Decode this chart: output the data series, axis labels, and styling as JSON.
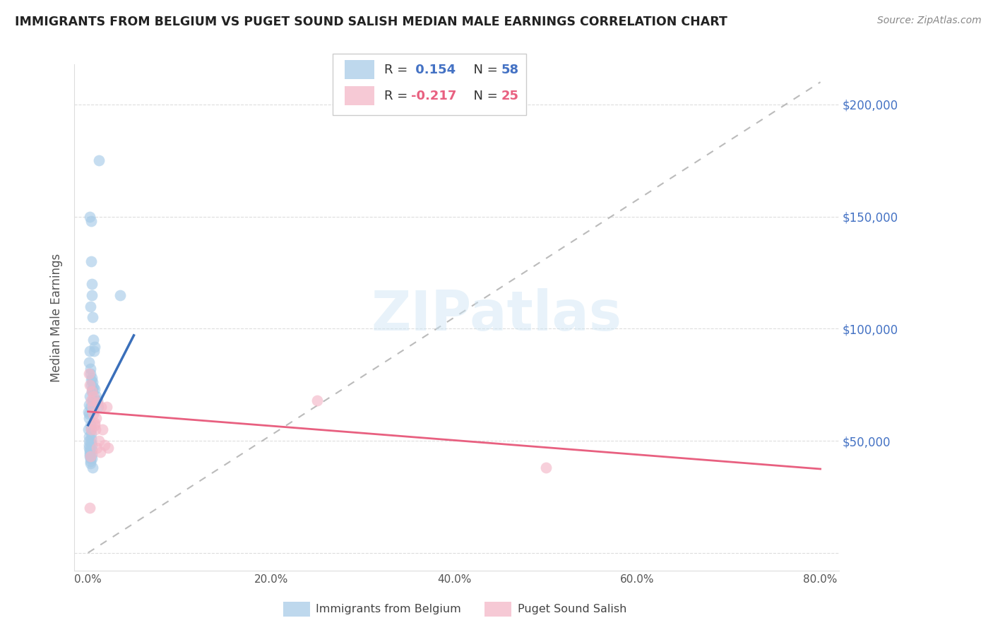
{
  "title": "IMMIGRANTS FROM BELGIUM VS PUGET SOUND SALISH MEDIAN MALE EARNINGS CORRELATION CHART",
  "source": "Source: ZipAtlas.com",
  "ylabel": "Median Male Earnings",
  "blue_R": 0.154,
  "blue_N": 58,
  "pink_R": -0.217,
  "pink_N": 25,
  "blue_label": "Immigrants from Belgium",
  "pink_label": "Puget Sound Salish",
  "blue_color": "#a8cce8",
  "pink_color": "#f4b8c8",
  "blue_line_color": "#3a6fba",
  "pink_line_color": "#e86080",
  "diag_line_color": "#bbbbbb",
  "grid_color": "#dddddd",
  "title_color": "#222222",
  "source_color": "#888888",
  "tick_color": "#555555",
  "ylabel_color": "#555555",
  "right_tick_color": "#4472c4",
  "xlim": [
    0,
    80
  ],
  "ylim": [
    0,
    210000
  ],
  "x_ticks": [
    0,
    20,
    40,
    60,
    80
  ],
  "x_tick_labels": [
    "0.0%",
    "20.0%",
    "40.0%",
    "60.0%",
    "80.0%"
  ],
  "y_ticks": [
    0,
    50000,
    100000,
    150000,
    200000
  ],
  "y_tick_labels": [
    "",
    "$50,000",
    "$100,000",
    "$150,000",
    "$200,000"
  ],
  "blue_x": [
    0.05,
    0.08,
    0.1,
    0.12,
    0.14,
    0.16,
    0.18,
    0.2,
    0.22,
    0.24,
    0.26,
    0.28,
    0.3,
    0.32,
    0.34,
    0.36,
    0.38,
    0.4,
    0.42,
    0.44,
    0.46,
    0.48,
    0.5,
    0.52,
    0.54,
    0.56,
    0.6,
    0.65,
    0.7,
    0.75,
    0.8,
    0.9,
    1.0,
    1.1,
    1.2,
    0.05,
    0.07,
    0.09,
    0.11,
    0.13,
    0.15,
    0.17,
    0.19,
    0.21,
    0.23,
    0.25,
    0.27,
    0.29,
    0.31,
    0.33,
    0.35,
    0.37,
    0.39,
    0.41,
    0.43,
    0.45,
    0.5,
    3.5
  ],
  "blue_y": [
    63000,
    60000,
    85000,
    62000,
    66000,
    90000,
    70000,
    150000,
    82000,
    65000,
    110000,
    80000,
    148000,
    77000,
    75000,
    130000,
    78000,
    120000,
    72000,
    115000,
    73000,
    68000,
    105000,
    76000,
    64000,
    95000,
    74000,
    90000,
    92000,
    73000,
    68000,
    70000,
    68000,
    65000,
    175000,
    55000,
    52000,
    50000,
    48000,
    47000,
    46000,
    45000,
    44000,
    43000,
    42000,
    41000,
    40000,
    57000,
    55000,
    53000,
    51000,
    49000,
    48000,
    46000,
    44000,
    42000,
    38000,
    115000
  ],
  "pink_x": [
    0.1,
    0.2,
    0.3,
    0.4,
    0.5,
    0.6,
    0.7,
    0.8,
    0.9,
    1.0,
    1.2,
    1.4,
    1.6,
    1.8,
    2.0,
    2.2,
    0.35,
    0.55,
    0.75,
    0.95,
    1.3,
    25.0,
    50.0,
    0.25,
    0.15
  ],
  "pink_y": [
    80000,
    75000,
    68000,
    72000,
    65000,
    70000,
    58000,
    55000,
    60000,
    67000,
    50000,
    65000,
    55000,
    48000,
    65000,
    47000,
    55000,
    62000,
    57000,
    47000,
    45000,
    68000,
    38000,
    43000,
    20000
  ],
  "blue_trend_x": [
    0.0,
    5.0
  ],
  "blue_trend_y_intercept": 57000,
  "blue_trend_slope": 8000,
  "pink_trend_x": [
    0.0,
    80.0
  ],
  "pink_trend_y_intercept": 63000,
  "pink_trend_slope": -320
}
